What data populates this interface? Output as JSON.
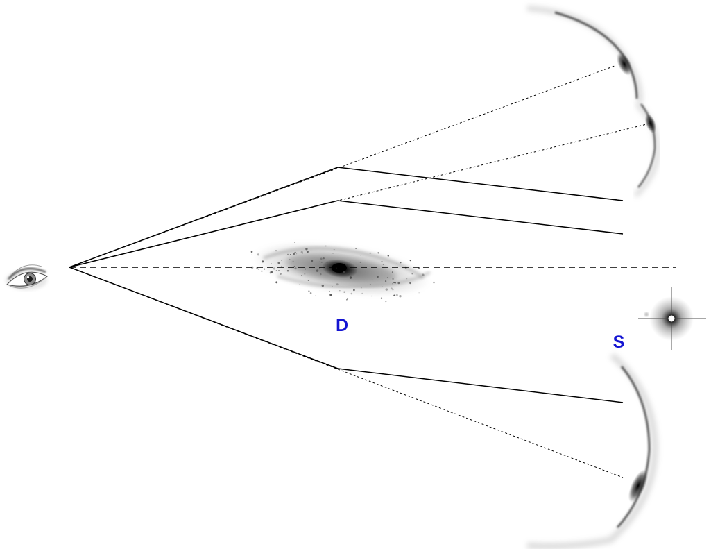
{
  "diagram": {
    "label_lens": "D",
    "label_source": "S",
    "label_color": "#1414d2",
    "line_color": "#000000",
    "observer_icon": "eye-icon",
    "lens_icon": "galaxy-icon",
    "source_icon": "star-icon"
  }
}
